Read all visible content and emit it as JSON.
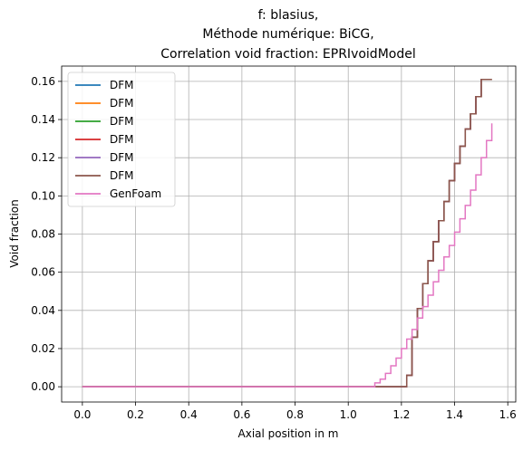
{
  "chart_data": {
    "type": "line",
    "step": true,
    "title_lines": [
      "f: blasius,",
      "Méthode numérique: BiCG,",
      "Correlation void fraction: EPRIvoidModel"
    ],
    "xlabel": "Axial position in m",
    "ylabel": "Void fraction",
    "xlim": [
      -0.078,
      1.63
    ],
    "ylim": [
      -0.008,
      0.168
    ],
    "xticks": [
      0.0,
      0.2,
      0.4,
      0.6,
      0.8,
      1.0,
      1.2,
      1.4,
      1.6
    ],
    "xtick_labels": [
      "0.0",
      "0.2",
      "0.4",
      "0.6",
      "0.8",
      "1.0",
      "1.2",
      "1.4",
      "1.6"
    ],
    "yticks": [
      0.0,
      0.02,
      0.04,
      0.06,
      0.08,
      0.1,
      0.12,
      0.14,
      0.16
    ],
    "ytick_labels": [
      "0.00",
      "0.02",
      "0.04",
      "0.06",
      "0.08",
      "0.10",
      "0.12",
      "0.14",
      "0.16"
    ],
    "grid": true,
    "legend_position": "upper-left",
    "series": [
      {
        "name": "DFM",
        "color": "#1f77b4",
        "x": [
          0.0,
          1.22,
          1.24,
          1.26,
          1.28,
          1.3,
          1.32,
          1.34,
          1.36,
          1.38,
          1.4,
          1.42,
          1.44,
          1.46,
          1.48,
          1.5,
          1.52,
          1.54
        ],
        "y": [
          0.0,
          0.006,
          0.026,
          0.041,
          0.054,
          0.066,
          0.076,
          0.087,
          0.097,
          0.108,
          0.117,
          0.126,
          0.135,
          0.143,
          0.152,
          0.161,
          0.161,
          0.161
        ]
      },
      {
        "name": "DFM",
        "color": "#ff7f0e",
        "x": [
          0.0,
          1.22,
          1.24,
          1.26,
          1.28,
          1.3,
          1.32,
          1.34,
          1.36,
          1.38,
          1.4,
          1.42,
          1.44,
          1.46,
          1.48,
          1.5,
          1.52,
          1.54
        ],
        "y": [
          0.0,
          0.006,
          0.026,
          0.041,
          0.054,
          0.066,
          0.076,
          0.087,
          0.097,
          0.108,
          0.117,
          0.126,
          0.135,
          0.143,
          0.152,
          0.161,
          0.161,
          0.161
        ]
      },
      {
        "name": "DFM",
        "color": "#2ca02c",
        "x": [
          0.0,
          1.22,
          1.24,
          1.26,
          1.28,
          1.3,
          1.32,
          1.34,
          1.36,
          1.38,
          1.4,
          1.42,
          1.44,
          1.46,
          1.48,
          1.5,
          1.52,
          1.54
        ],
        "y": [
          0.0,
          0.006,
          0.026,
          0.041,
          0.054,
          0.066,
          0.076,
          0.087,
          0.097,
          0.108,
          0.117,
          0.126,
          0.135,
          0.143,
          0.152,
          0.161,
          0.161,
          0.161
        ]
      },
      {
        "name": "DFM",
        "color": "#d62728",
        "x": [
          0.0,
          1.22,
          1.24,
          1.26,
          1.28,
          1.3,
          1.32,
          1.34,
          1.36,
          1.38,
          1.4,
          1.42,
          1.44,
          1.46,
          1.48,
          1.5,
          1.52,
          1.54
        ],
        "y": [
          0.0,
          0.006,
          0.026,
          0.041,
          0.054,
          0.066,
          0.076,
          0.087,
          0.097,
          0.108,
          0.117,
          0.126,
          0.135,
          0.143,
          0.152,
          0.161,
          0.161,
          0.161
        ]
      },
      {
        "name": "DFM",
        "color": "#9467bd",
        "x": [
          0.0,
          1.22,
          1.24,
          1.26,
          1.28,
          1.3,
          1.32,
          1.34,
          1.36,
          1.38,
          1.4,
          1.42,
          1.44,
          1.46,
          1.48,
          1.5,
          1.52,
          1.54
        ],
        "y": [
          0.0,
          0.006,
          0.026,
          0.041,
          0.054,
          0.066,
          0.076,
          0.087,
          0.097,
          0.108,
          0.117,
          0.126,
          0.135,
          0.143,
          0.152,
          0.161,
          0.161,
          0.161
        ]
      },
      {
        "name": "DFM",
        "color": "#8c564b",
        "x": [
          0.0,
          1.22,
          1.24,
          1.26,
          1.28,
          1.3,
          1.32,
          1.34,
          1.36,
          1.38,
          1.4,
          1.42,
          1.44,
          1.46,
          1.48,
          1.5,
          1.52,
          1.54
        ],
        "y": [
          0.0,
          0.006,
          0.026,
          0.041,
          0.054,
          0.066,
          0.076,
          0.087,
          0.097,
          0.108,
          0.117,
          0.126,
          0.135,
          0.143,
          0.152,
          0.161,
          0.161,
          0.161
        ]
      },
      {
        "name": "GenFoam",
        "color": "#e377c2",
        "x": [
          0.0,
          1.1,
          1.12,
          1.14,
          1.16,
          1.18,
          1.2,
          1.22,
          1.24,
          1.26,
          1.28,
          1.3,
          1.32,
          1.34,
          1.36,
          1.38,
          1.4,
          1.42,
          1.44,
          1.46,
          1.48,
          1.5,
          1.52,
          1.54
        ],
        "y": [
          0.0,
          0.002,
          0.004,
          0.007,
          0.011,
          0.015,
          0.02,
          0.025,
          0.03,
          0.036,
          0.042,
          0.048,
          0.055,
          0.061,
          0.068,
          0.074,
          0.081,
          0.088,
          0.095,
          0.103,
          0.111,
          0.12,
          0.129,
          0.138
        ]
      }
    ]
  }
}
